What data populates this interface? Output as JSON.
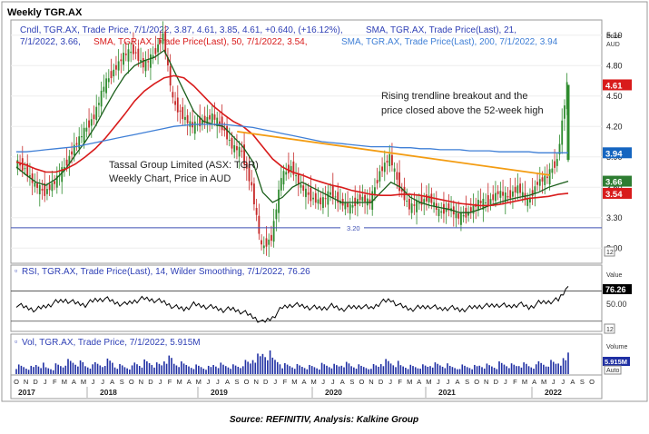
{
  "window_title": "Weekly TGR.AX",
  "source_caption": "Source: REFINITIV, Analysis: Kalkine Group",
  "colors": {
    "candle_up": "#2e8b2e",
    "candle_down": "#c62828",
    "sma21": "#1a5e1a",
    "sma50": "#d81b1b",
    "sma200": "#3f7fd6",
    "trendline": "#f39c12",
    "support": "#3f51b5",
    "rsi": "#000000",
    "volume": "#1f2fa3",
    "legend_text": "#2e3fb5",
    "price_label_red": "#d81b1b",
    "price_label_blue": "#1565c0",
    "price_label_green": "#2e7d32"
  },
  "price_panel": {
    "legend_line1": "Cndl, TGR.AX, Trade Price, 7/1/2022, 3.87, 4.61, 3.85, 4.61, +0.640, (+16.12%),",
    "legend_line1b": "SMA, TGR.AX, Trade Price(Last),  21,",
    "legend_line2": "7/1/2022, 3.66,",
    "legend_line2b": "SMA, TGR.AX, Trade Price(Last),  50, 7/1/2022, 3.54,",
    "legend_line2c": "SMA, TGR.AX, Trade Price(Last),  200, 7/1/2022, 3.94",
    "axis_title_line1": "Price",
    "axis_title_line2": "AUD",
    "ticks": [
      "5.10",
      "4.80",
      "4.50",
      "4.20",
      "3.90",
      "3.60",
      "3.30",
      "3.00"
    ],
    "scale_label": "12",
    "price_tags": [
      {
        "label": "4.61",
        "value": 4.61,
        "color": "price_label_red"
      },
      {
        "label": "3.94",
        "value": 3.94,
        "color": "price_label_blue"
      },
      {
        "label": "3.66",
        "value": 3.66,
        "color": "price_label_green"
      },
      {
        "label": "3.54",
        "value": 3.54,
        "color": "price_label_red"
      }
    ],
    "support_label": "3.20",
    "annotation_company_line1": "Tassal Group Limited (ASX: TGR)",
    "annotation_company_line2": "Weekly Chart, Price in AUD",
    "annotation_breakout_line1": "Rising trendline breakout and the",
    "annotation_breakout_line2": "price closed above the 52-week high"
  },
  "rsi_panel": {
    "legend": "RSI, TGR.AX, Trade Price(Last), 14, Wilder Smoothing, 7/1/2022, 76.26",
    "axis_title": "Value",
    "current_label": "76.26",
    "tick_50": "50.00",
    "scale_label": "12"
  },
  "volume_panel": {
    "legend": "Vol, TGR.AX, Trade Price, 7/1/2022, 5.915M",
    "axis_title": "Volume",
    "current_label": "5.915M",
    "auto_label": "Auto"
  },
  "time_axis": {
    "month_letters": [
      "O",
      "N",
      "D",
      "J",
      "F",
      "M",
      "A",
      "M",
      "J",
      "J",
      "A",
      "S",
      "O",
      "N",
      "D",
      "J",
      "F",
      "M",
      "A",
      "M",
      "J",
      "J",
      "A",
      "S",
      "O",
      "N",
      "D",
      "J",
      "F",
      "M",
      "A",
      "M",
      "J",
      "J",
      "A",
      "S",
      "O",
      "N",
      "D",
      "J",
      "F",
      "M",
      "A",
      "M",
      "J",
      "J",
      "A",
      "S",
      "O",
      "N",
      "D",
      "J",
      "F",
      "M",
      "A",
      "M",
      "J",
      "J",
      "A",
      "S",
      "O"
    ],
    "years": [
      "2017",
      "2018",
      "2019",
      "2020",
      "2021",
      "2022"
    ]
  },
  "chart_data": [
    {
      "type": "candlestick",
      "title": "Weekly TGR.AX",
      "ylabel": "Price AUD",
      "ylim": [
        2.85,
        5.25
      ],
      "x_range": [
        "2017-10",
        "2022-10"
      ],
      "series": [
        {
          "name": "Cndl, TGR.AX, Trade Price",
          "last": {
            "date": "7/1/2022",
            "open": 3.87,
            "high": 4.61,
            "low": 3.85,
            "close": 4.61,
            "change": "+0.640",
            "change_pct": "(+16.12%)"
          },
          "close_path": [
            3.85,
            3.78,
            3.62,
            3.55,
            3.65,
            3.8,
            4.0,
            4.15,
            4.3,
            4.6,
            4.75,
            4.9,
            4.95,
            4.8,
            4.9,
            5.1,
            4.45,
            4.3,
            4.2,
            4.25,
            4.3,
            4.2,
            4.0,
            3.95,
            3.6,
            3.0,
            3.1,
            3.7,
            3.8,
            3.6,
            3.5,
            3.45,
            3.55,
            3.45,
            3.4,
            3.5,
            3.45,
            3.75,
            3.9,
            3.6,
            3.4,
            3.45,
            3.5,
            3.35,
            3.4,
            3.3,
            3.35,
            3.45,
            3.45,
            3.55,
            3.5,
            3.6,
            3.45,
            3.65,
            3.7,
            3.87,
            4.61
          ]
        },
        {
          "name": "SMA, TGR.AX, Trade Price(Last), 21",
          "last": 3.66,
          "values": [
            3.8,
            3.72,
            3.65,
            3.62,
            3.68,
            3.78,
            3.92,
            4.05,
            4.2,
            4.38,
            4.55,
            4.7,
            4.8,
            4.85,
            4.88,
            4.95,
            4.75,
            4.55,
            4.35,
            4.25,
            4.22,
            4.2,
            4.1,
            4.0,
            3.85,
            3.55,
            3.45,
            3.5,
            3.6,
            3.65,
            3.6,
            3.55,
            3.5,
            3.45,
            3.45,
            3.45,
            3.45,
            3.55,
            3.65,
            3.6,
            3.5,
            3.45,
            3.42,
            3.4,
            3.38,
            3.35,
            3.35,
            3.38,
            3.42,
            3.45,
            3.48,
            3.5,
            3.52,
            3.55,
            3.6,
            3.63,
            3.66
          ]
        },
        {
          "name": "SMA, TGR.AX, Trade Price(Last), 50",
          "last": 3.54,
          "values": [
            3.85,
            3.82,
            3.78,
            3.75,
            3.75,
            3.78,
            3.83,
            3.9,
            3.98,
            4.08,
            4.2,
            4.32,
            4.45,
            4.55,
            4.62,
            4.68,
            4.7,
            4.68,
            4.6,
            4.5,
            4.4,
            4.32,
            4.25,
            4.2,
            4.12,
            4.0,
            3.88,
            3.8,
            3.75,
            3.72,
            3.68,
            3.65,
            3.62,
            3.6,
            3.57,
            3.55,
            3.53,
            3.52,
            3.52,
            3.53,
            3.53,
            3.52,
            3.5,
            3.48,
            3.46,
            3.44,
            3.43,
            3.42,
            3.42,
            3.43,
            3.45,
            3.47,
            3.49,
            3.5,
            3.51,
            3.53,
            3.54
          ]
        },
        {
          "name": "SMA, TGR.AX, Trade Price(Last), 200",
          "last": 3.94,
          "values": [
            3.95,
            3.95,
            3.96,
            3.97,
            3.98,
            3.99,
            4.0,
            4.02,
            4.04,
            4.06,
            4.08,
            4.1,
            4.12,
            4.14,
            4.16,
            4.18,
            4.2,
            4.21,
            4.22,
            4.22,
            4.22,
            4.22,
            4.21,
            4.2,
            4.19,
            4.17,
            4.15,
            4.13,
            4.11,
            4.09,
            4.07,
            4.05,
            4.04,
            4.03,
            4.02,
            4.01,
            4.0,
            4.0,
            4.0,
            3.99,
            3.99,
            3.98,
            3.98,
            3.97,
            3.97,
            3.97,
            3.96,
            3.96,
            3.96,
            3.95,
            3.95,
            3.95,
            3.95,
            3.94,
            3.94,
            3.94,
            3.94
          ]
        }
      ],
      "horizontal_lines": [
        {
          "label": "3.20",
          "value": 3.2
        }
      ],
      "trendline": {
        "from": {
          "date": "2019-10",
          "value": 4.15
        },
        "to": {
          "date": "2022-08",
          "value": 3.72
        }
      }
    },
    {
      "type": "line",
      "title": "RSI, TGR.AX, Trade Price(Last), 14, Wilder Smoothing",
      "ylim": [
        20,
        90
      ],
      "reference_levels": [
        70,
        30
      ],
      "last": 76.26,
      "values": [
        52,
        48,
        45,
        50,
        55,
        58,
        54,
        52,
        58,
        60,
        55,
        52,
        57,
        60,
        58,
        55,
        49,
        46,
        52,
        50,
        48,
        45,
        46,
        42,
        36,
        28,
        35,
        48,
        52,
        50,
        48,
        47,
        50,
        46,
        48,
        50,
        47,
        55,
        58,
        50,
        46,
        48,
        50,
        46,
        48,
        45,
        47,
        50,
        50,
        52,
        49,
        53,
        48,
        54,
        56,
        58,
        76.26
      ]
    },
    {
      "type": "bar",
      "title": "Vol, TGR.AX, Trade Price",
      "last": "5.915M",
      "values": [
        2.1,
        1.8,
        2.5,
        1.6,
        2.2,
        3.1,
        2.8,
        2.0,
        2.6,
        3.4,
        2.2,
        1.9,
        2.7,
        3.0,
        2.4,
        3.8,
        2.6,
        2.3,
        2.1,
        1.8,
        2.5,
        2.2,
        2.0,
        2.9,
        4.2,
        5.1,
        3.6,
        2.4,
        2.2,
        2.0,
        1.9,
        2.3,
        2.1,
        2.5,
        2.0,
        1.8,
        2.2,
        3.3,
        2.9,
        2.1,
        1.9,
        2.0,
        2.4,
        2.2,
        1.8,
        2.1,
        2.0,
        2.3,
        2.1,
        2.6,
        2.2,
        2.4,
        2.0,
        2.8,
        3.1,
        3.5,
        5.915
      ]
    }
  ]
}
